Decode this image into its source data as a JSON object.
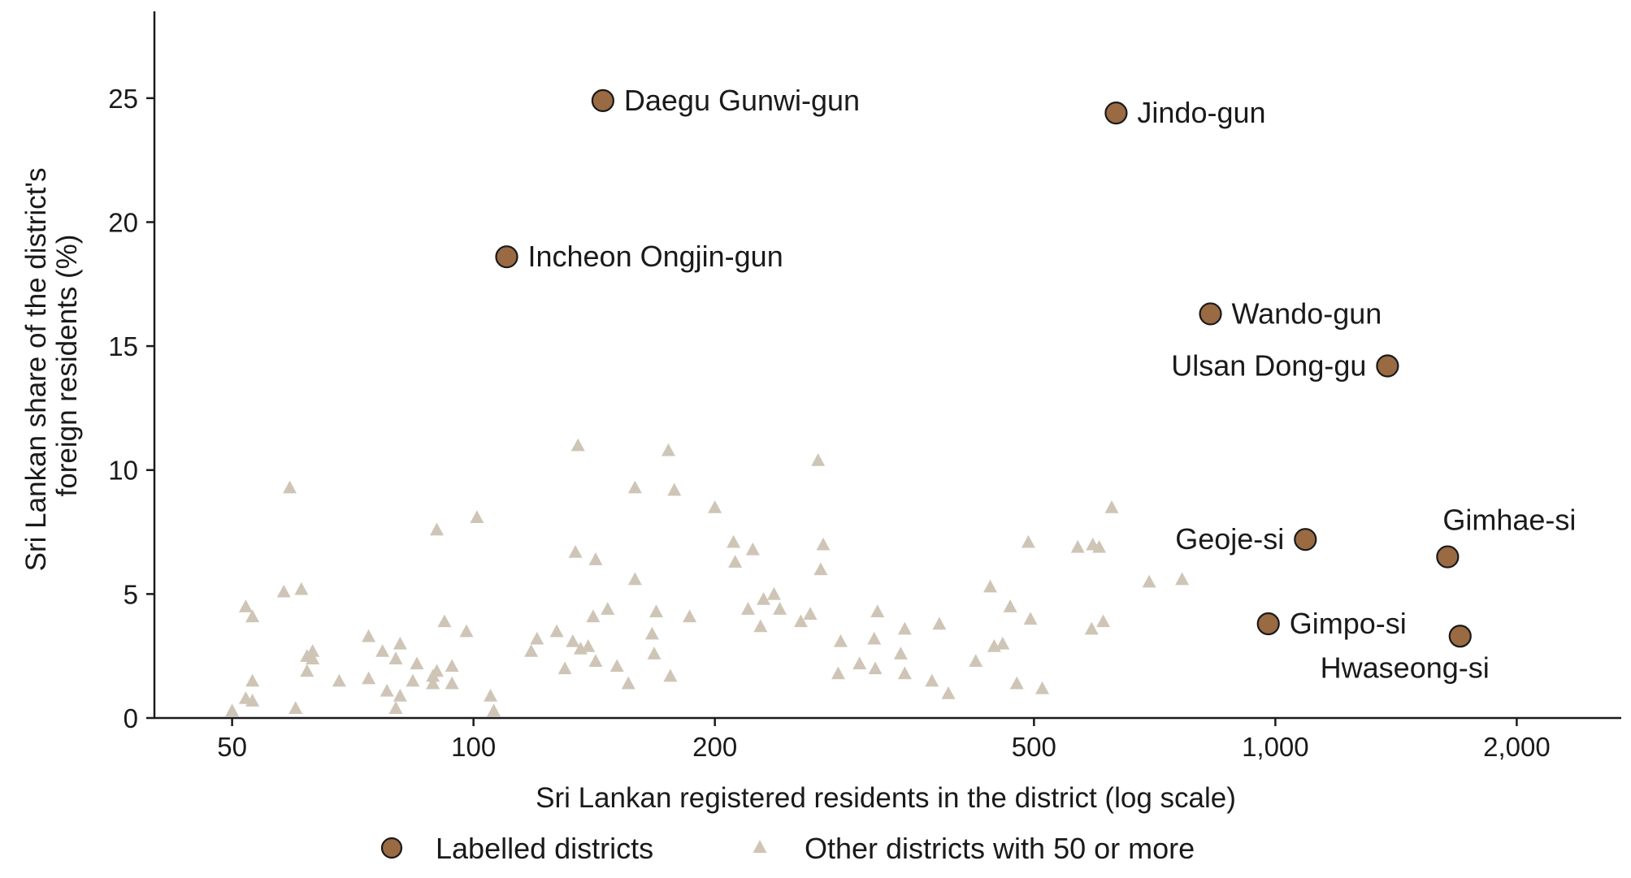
{
  "colors": {
    "labelled": "#9a6a43",
    "labelled_stroke": "#1a1a1a",
    "other": "#cfc5b7",
    "axis": "#1a1a1a",
    "text": "#1a1a1a"
  },
  "chart_data": {
    "type": "scatter",
    "xlabel": "Sri Lankan registered residents in the district (log scale)",
    "ylabel_lines": [
      "Sri Lankan share of the district's",
      "foreign residents (%)"
    ],
    "x_scale": "log",
    "xlim": [
      40,
      2700
    ],
    "ylim": [
      0,
      28.5
    ],
    "x_ticks": [
      50,
      100,
      200,
      500,
      1000,
      2000
    ],
    "x_tick_labels": [
      "50",
      "100",
      "200",
      "500",
      "1,000",
      "2,000"
    ],
    "y_ticks": [
      0,
      5,
      10,
      15,
      20,
      25
    ],
    "y_tick_labels": [
      "0",
      "5",
      "10",
      "15",
      "20",
      "25"
    ],
    "grid": false,
    "legend_position": "bottom",
    "legend": {
      "labelled": "Labelled districts",
      "other": "Other districts with 50 or more"
    },
    "series": [
      {
        "name": "Labelled districts",
        "marker": "circle",
        "points": [
          {
            "x": 145,
            "y": 24.9,
            "label": "Daegu Gunwi-gun",
            "pos": "right"
          },
          {
            "x": 633,
            "y": 24.4,
            "label": "Jindo-gun",
            "pos": "right"
          },
          {
            "x": 110,
            "y": 18.6,
            "label": "Incheon Ongjin-gun",
            "pos": "right"
          },
          {
            "x": 830,
            "y": 16.3,
            "label": "Wando-gun",
            "pos": "right"
          },
          {
            "x": 1380,
            "y": 14.2,
            "label": "Ulsan Dong-gu",
            "pos": "left"
          },
          {
            "x": 1090,
            "y": 7.2,
            "label": "Geoje-si",
            "pos": "left"
          },
          {
            "x": 1640,
            "y": 6.5,
            "label": "Gimhae-si",
            "pos": "above-right"
          },
          {
            "x": 980,
            "y": 3.8,
            "label": "Gimpo-si",
            "pos": "right"
          },
          {
            "x": 1700,
            "y": 3.3,
            "label": "Hwaseong-si",
            "pos": "below-left"
          }
        ]
      },
      {
        "name": "Other districts with 50 or more",
        "marker": "triangle",
        "points": [
          {
            "x": 50,
            "y": 0.3
          },
          {
            "x": 52,
            "y": 4.5
          },
          {
            "x": 52,
            "y": 0.8
          },
          {
            "x": 53,
            "y": 4.1
          },
          {
            "x": 53,
            "y": 1.5
          },
          {
            "x": 53,
            "y": 0.7
          },
          {
            "x": 58,
            "y": 5.1
          },
          {
            "x": 59,
            "y": 9.3
          },
          {
            "x": 60,
            "y": 0.4
          },
          {
            "x": 61,
            "y": 5.2
          },
          {
            "x": 62,
            "y": 2.5
          },
          {
            "x": 62,
            "y": 1.9
          },
          {
            "x": 63,
            "y": 2.4
          },
          {
            "x": 63,
            "y": 2.7
          },
          {
            "x": 68,
            "y": 1.5
          },
          {
            "x": 74,
            "y": 3.3
          },
          {
            "x": 74,
            "y": 1.6
          },
          {
            "x": 77,
            "y": 2.7
          },
          {
            "x": 78,
            "y": 1.1
          },
          {
            "x": 80,
            "y": 0.4
          },
          {
            "x": 80,
            "y": 2.4
          },
          {
            "x": 81,
            "y": 3.0
          },
          {
            "x": 81,
            "y": 0.9
          },
          {
            "x": 84,
            "y": 1.5
          },
          {
            "x": 85,
            "y": 2.2
          },
          {
            "x": 89,
            "y": 1.4
          },
          {
            "x": 89,
            "y": 1.7
          },
          {
            "x": 90,
            "y": 1.9
          },
          {
            "x": 90,
            "y": 7.6
          },
          {
            "x": 92,
            "y": 3.9
          },
          {
            "x": 94,
            "y": 2.1
          },
          {
            "x": 94,
            "y": 1.4
          },
          {
            "x": 98,
            "y": 3.5
          },
          {
            "x": 101,
            "y": 8.1
          },
          {
            "x": 105,
            "y": 0.9
          },
          {
            "x": 106,
            "y": 0.3
          },
          {
            "x": 118,
            "y": 2.7
          },
          {
            "x": 120,
            "y": 3.2
          },
          {
            "x": 127,
            "y": 3.5
          },
          {
            "x": 130,
            "y": 2.0
          },
          {
            "x": 133,
            "y": 3.1
          },
          {
            "x": 134,
            "y": 6.7
          },
          {
            "x": 135,
            "y": 11.0
          },
          {
            "x": 136,
            "y": 2.8
          },
          {
            "x": 139,
            "y": 2.9
          },
          {
            "x": 141,
            "y": 4.1
          },
          {
            "x": 142,
            "y": 2.3
          },
          {
            "x": 142,
            "y": 6.4
          },
          {
            "x": 147,
            "y": 4.4
          },
          {
            "x": 151,
            "y": 2.1
          },
          {
            "x": 156,
            "y": 1.4
          },
          {
            "x": 159,
            "y": 5.6
          },
          {
            "x": 159,
            "y": 9.3
          },
          {
            "x": 167,
            "y": 3.4
          },
          {
            "x": 168,
            "y": 2.6
          },
          {
            "x": 169,
            "y": 4.3
          },
          {
            "x": 175,
            "y": 10.8
          },
          {
            "x": 176,
            "y": 1.7
          },
          {
            "x": 178,
            "y": 9.2
          },
          {
            "x": 186,
            "y": 4.1
          },
          {
            "x": 200,
            "y": 8.5
          },
          {
            "x": 211,
            "y": 7.1
          },
          {
            "x": 212,
            "y": 6.3
          },
          {
            "x": 220,
            "y": 4.4
          },
          {
            "x": 223,
            "y": 6.8
          },
          {
            "x": 228,
            "y": 3.7
          },
          {
            "x": 230,
            "y": 4.8
          },
          {
            "x": 237,
            "y": 5.0
          },
          {
            "x": 241,
            "y": 4.4
          },
          {
            "x": 256,
            "y": 3.9
          },
          {
            "x": 263,
            "y": 4.2
          },
          {
            "x": 269,
            "y": 10.4
          },
          {
            "x": 271,
            "y": 6.0
          },
          {
            "x": 273,
            "y": 7.0
          },
          {
            "x": 285,
            "y": 1.8
          },
          {
            "x": 287,
            "y": 3.1
          },
          {
            "x": 303,
            "y": 2.2
          },
          {
            "x": 316,
            "y": 3.2
          },
          {
            "x": 317,
            "y": 2.0
          },
          {
            "x": 319,
            "y": 4.3
          },
          {
            "x": 341,
            "y": 2.6
          },
          {
            "x": 345,
            "y": 3.6
          },
          {
            "x": 345,
            "y": 1.8
          },
          {
            "x": 373,
            "y": 1.5
          },
          {
            "x": 381,
            "y": 3.8
          },
          {
            "x": 391,
            "y": 1.0
          },
          {
            "x": 423,
            "y": 2.3
          },
          {
            "x": 441,
            "y": 5.3
          },
          {
            "x": 446,
            "y": 2.9
          },
          {
            "x": 457,
            "y": 3.0
          },
          {
            "x": 467,
            "y": 4.5
          },
          {
            "x": 476,
            "y": 1.4
          },
          {
            "x": 492,
            "y": 7.1
          },
          {
            "x": 495,
            "y": 4.0
          },
          {
            "x": 512,
            "y": 1.2
          },
          {
            "x": 567,
            "y": 6.9
          },
          {
            "x": 590,
            "y": 3.6
          },
          {
            "x": 592,
            "y": 7.0
          },
          {
            "x": 603,
            "y": 6.9
          },
          {
            "x": 610,
            "y": 3.9
          },
          {
            "x": 625,
            "y": 8.5
          },
          {
            "x": 696,
            "y": 5.5
          },
          {
            "x": 765,
            "y": 5.6
          }
        ]
      }
    ]
  }
}
